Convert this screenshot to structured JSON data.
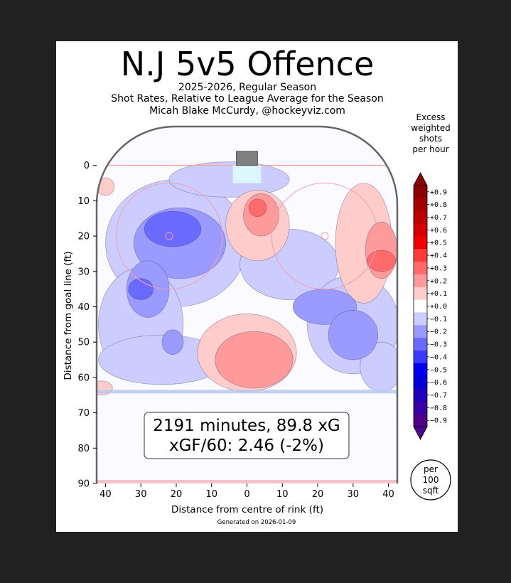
{
  "chart_data": {
    "type": "heatmap",
    "title": "N.J 5v5 Offence",
    "subtitle_lines": [
      "2025-2026, Regular Season",
      "Shot Rates, Relative to League Average for the Season",
      "Micah Blake McCurdy, @hockeyviz.com"
    ],
    "xlabel": "Distance from centre of rink (ft)",
    "ylabel": "Distance from goal line (ft)",
    "x_ticks": [
      "40",
      "30",
      "20",
      "10",
      "0",
      "10",
      "20",
      "30",
      "40"
    ],
    "x_tick_values": [
      -40,
      -30,
      -20,
      -10,
      0,
      10,
      20,
      30,
      40
    ],
    "y_ticks": [
      "0",
      "10",
      "20",
      "30",
      "40",
      "50",
      "60",
      "70",
      "80",
      "90"
    ],
    "y_tick_values": [
      0,
      10,
      20,
      30,
      40,
      50,
      60,
      70,
      80,
      90
    ],
    "xlim": [
      -42.5,
      42.5
    ],
    "ylim": [
      -11,
      90
    ],
    "summary_line1": "2191 minutes, 89.8 xG",
    "summary_line2": "xGF/60: 2.46 (-2%)",
    "colorbar": {
      "title_lines": [
        "Excess",
        "weighted",
        "shots",
        "per hour"
      ],
      "labels": [
        "+0.9",
        "+0.8",
        "+0.7",
        "+0.6",
        "+0.5",
        "+0.4",
        "+0.3",
        "+0.2",
        "+0.1",
        "+0.0",
        "−0.1",
        "−0.2",
        "−0.3",
        "−0.4",
        "−0.5",
        "−0.6",
        "−0.7",
        "−0.8",
        "−0.9"
      ],
      "levels": [
        0.9,
        0.8,
        0.7,
        0.6,
        0.5,
        0.4,
        0.3,
        0.2,
        0.1,
        0.0,
        -0.1,
        -0.2,
        -0.3,
        -0.4,
        -0.5,
        -0.6,
        -0.7,
        -0.8,
        -0.9
      ],
      "colors": [
        "#8b0000",
        "#a30000",
        "#bb0000",
        "#d60000",
        "#f00000",
        "#ff3a3a",
        "#ff6a6a",
        "#ff9a9a",
        "#ffcccc",
        "#ffffff",
        "#ccccff",
        "#9a9aff",
        "#6a6aff",
        "#3a3aff",
        "#0000f0",
        "#0000d6",
        "#2000bb",
        "#3a00a3",
        "#50008b"
      ]
    },
    "unit_note_lines": [
      "per",
      "100",
      "sqft"
    ],
    "footer": "Generated on 2026-01-09",
    "regions": [
      {
        "level": -0.1,
        "cx": -20,
        "cy": 22,
        "rx": 20,
        "ry": 18
      },
      {
        "level": -0.1,
        "cx": -30,
        "cy": 45,
        "rx": 12,
        "ry": 16
      },
      {
        "level": -0.1,
        "cx": -24,
        "cy": 55,
        "rx": 18,
        "ry": 7
      },
      {
        "level": -0.1,
        "cx": -5,
        "cy": 4,
        "rx": 17,
        "ry": 5
      },
      {
        "level": -0.1,
        "cx": 12,
        "cy": 28,
        "rx": 14,
        "ry": 10
      },
      {
        "level": -0.1,
        "cx": 30,
        "cy": 45,
        "rx": 13,
        "ry": 14
      },
      {
        "level": -0.1,
        "cx": 38,
        "cy": 57,
        "rx": 6,
        "ry": 7
      },
      {
        "level": -0.2,
        "cx": -19,
        "cy": 22,
        "rx": 13,
        "ry": 10
      },
      {
        "level": -0.2,
        "cx": -28,
        "cy": 35,
        "rx": 6,
        "ry": 8
      },
      {
        "level": -0.2,
        "cx": -21,
        "cy": 50,
        "rx": 3,
        "ry": 3.5
      },
      {
        "level": -0.2,
        "cx": 22,
        "cy": 40,
        "rx": 9,
        "ry": 5
      },
      {
        "level": -0.2,
        "cx": 30,
        "cy": 48,
        "rx": 7,
        "ry": 7
      },
      {
        "level": -0.3,
        "cx": -21,
        "cy": 18,
        "rx": 8,
        "ry": 5
      },
      {
        "level": -0.3,
        "cx": -30,
        "cy": 35,
        "rx": 3.5,
        "ry": 3
      },
      {
        "level": 0.1,
        "cx": 3,
        "cy": 17,
        "rx": 9,
        "ry": 10
      },
      {
        "level": 0.1,
        "cx": 33,
        "cy": 22,
        "rx": 8,
        "ry": 17
      },
      {
        "level": 0.1,
        "cx": 0,
        "cy": 53,
        "rx": 14,
        "ry": 11
      },
      {
        "level": 0.1,
        "cx": -41,
        "cy": 63,
        "rx": 3,
        "ry": 2
      },
      {
        "level": 0.1,
        "cx": -40,
        "cy": 6,
        "rx": 2.5,
        "ry": 2.5
      },
      {
        "level": 0.2,
        "cx": 4,
        "cy": 14,
        "rx": 5,
        "ry": 6
      },
      {
        "level": 0.2,
        "cx": 38,
        "cy": 24,
        "rx": 4.5,
        "ry": 8
      },
      {
        "level": 0.2,
        "cx": 2,
        "cy": 55,
        "rx": 11,
        "ry": 8
      },
      {
        "level": 0.3,
        "cx": 3,
        "cy": 12,
        "rx": 2.5,
        "ry": 2.5
      },
      {
        "level": 0.3,
        "cx": 38,
        "cy": 27,
        "rx": 4,
        "ry": 3
      }
    ]
  }
}
